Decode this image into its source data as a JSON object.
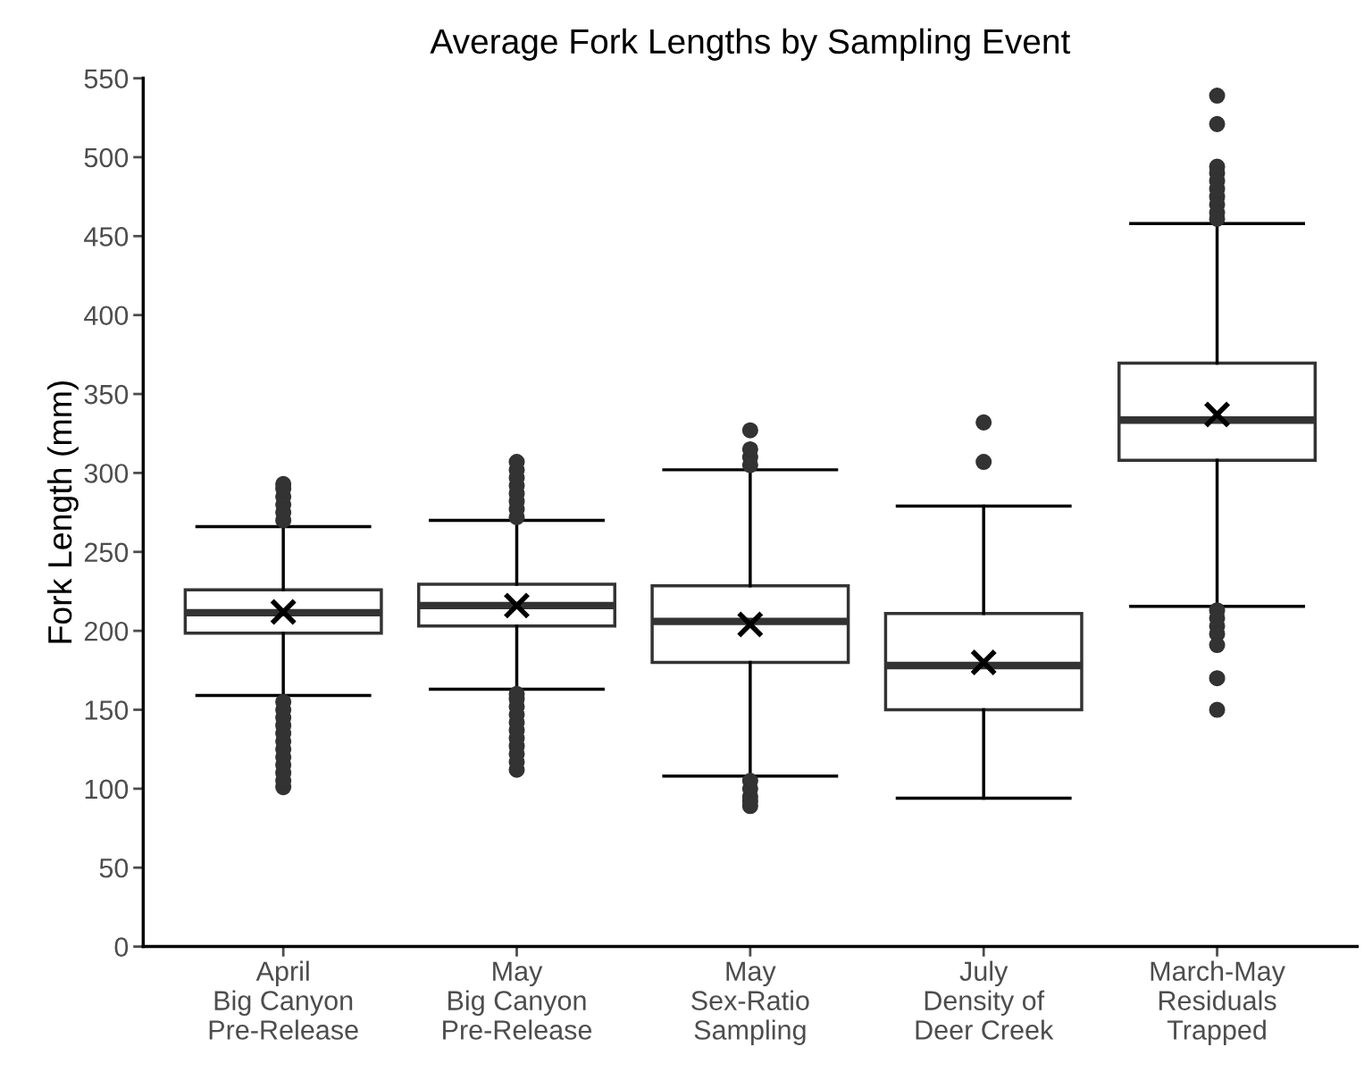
{
  "chart_data": {
    "type": "box",
    "title": "Average Fork Lengths by Sampling Event",
    "ylabel": "Fork Length (mm)",
    "categories": [
      "April\nBig Canyon\nPre-Release",
      "May\nBig Canyon\nPre-Release",
      "May\nSex-Ratio\nSampling",
      "July\nDensity of\nDeer Creek",
      "March-May\nResiduals\nTrapped"
    ],
    "color": "#333333",
    "boxes": [
      {
        "low": 159,
        "q1": 198.5,
        "median": 211.5,
        "q3": 226,
        "high": 266,
        "mean": 212,
        "outliers": [
          270,
          275,
          280,
          285,
          290,
          293,
          101,
          105,
          110,
          115,
          120,
          125,
          130,
          135,
          140,
          145,
          150,
          155
        ]
      },
      {
        "low": 163,
        "q1": 203,
        "median": 216,
        "q3": 229.5,
        "high": 270,
        "mean": 216,
        "outliers": [
          272,
          277,
          282,
          287,
          292,
          297,
          302,
          307,
          112,
          117,
          122,
          127,
          132,
          137,
          142,
          147,
          152,
          157,
          160
        ]
      },
      {
        "low": 108,
        "q1": 180,
        "median": 206,
        "q3": 228.5,
        "high": 302,
        "mean": 204,
        "outliers": [
          305,
          310,
          315,
          327,
          89,
          92,
          95,
          100,
          105
        ]
      },
      {
        "low": 94,
        "q1": 150,
        "median": 178,
        "q3": 211,
        "high": 279,
        "mean": 180,
        "outliers": [
          307,
          332
        ]
      },
      {
        "low": 215.5,
        "q1": 308,
        "median": 333.5,
        "q3": 369.5,
        "high": 458,
        "mean": 337,
        "outliers": [
          539,
          521,
          494,
          490,
          485,
          480,
          475,
          470,
          465,
          461,
          213,
          208,
          203,
          198,
          191,
          170,
          150
        ]
      }
    ],
    "ylim": [
      0,
      550
    ],
    "yticks": [
      0,
      50,
      100,
      150,
      200,
      250,
      300,
      350,
      400,
      450,
      500,
      550
    ],
    "grid": false
  }
}
